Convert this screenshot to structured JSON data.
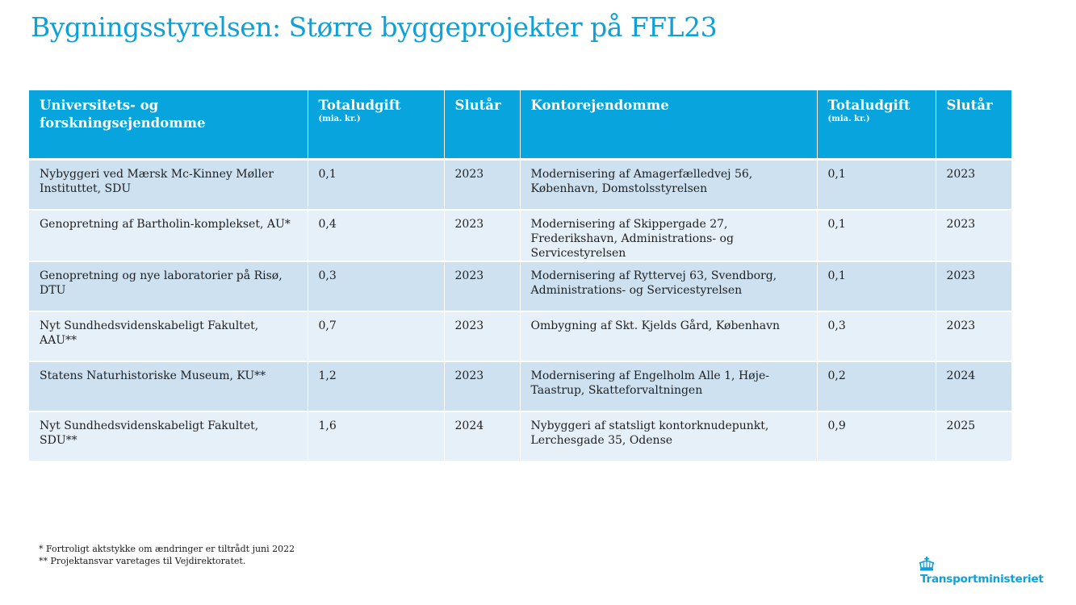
{
  "page": {
    "title": "Bygningsstyrelsen: Større byggeprojekter på FFL23"
  },
  "table": {
    "headers": [
      {
        "label": "Universitets- og forskningsejendomme",
        "unit": ""
      },
      {
        "label": "Totaludgift",
        "unit": "(mia. kr.)"
      },
      {
        "label": "Slutår",
        "unit": ""
      },
      {
        "label": "Kontorejendomme",
        "unit": ""
      },
      {
        "label": "Totaludgift",
        "unit": "(mia. kr.)"
      },
      {
        "label": "Slutår",
        "unit": ""
      }
    ],
    "rows": [
      [
        "Nybyggeri ved Mærsk Mc-Kinney Møller Instituttet, SDU",
        "0,1",
        "2023",
        "Modernisering af Amagerfælledvej 56, København, Domstolsstyrelsen",
        "0,1",
        "2023"
      ],
      [
        "Genopretning af Bartholin-komplekset, AU*",
        "0,4",
        "2023",
        "Modernisering af Skippergade 27, Frederikshavn, Administrations- og Servicestyrelsen",
        "0,1",
        "2023"
      ],
      [
        "Genopretning og nye laboratorier på Risø, DTU",
        "0,3",
        "2023",
        "Modernisering af Ryttervej 63, Svendborg, Administrations- og Servicestyrelsen",
        "0,1",
        "2023"
      ],
      [
        "Nyt Sundhedsvidenskabeligt Fakultet, AAU**",
        "0,7",
        "2023",
        "Ombygning af Skt. Kjelds Gård, København",
        "0,3",
        "2023"
      ],
      [
        "Statens Naturhistoriske Museum, KU**",
        "1,2",
        "2023",
        "Modernisering af Engelholm Alle 1, Høje-Taastrup, Skatteforvaltningen",
        "0,2",
        "2024"
      ],
      [
        "Nyt Sundhedsvidenskabeligt Fakultet, SDU**",
        "1,6",
        "2024",
        "Nybyggeri af statsligt kontorknudepunkt, Lerchesgade 35, Odense",
        "0,9",
        "2025"
      ]
    ]
  },
  "footnotes": {
    "note1": "* Fortroligt aktstykke om ændringer er tiltrådt juni 2022",
    "note2": "** Projektansvar varetages til Vejdirektoratet."
  },
  "logo": {
    "text": "Transportministeriet",
    "icon": "crown-icon"
  },
  "colors": {
    "accent": "#0ea0d8",
    "header_bg": "#08a4de",
    "row_dark": "#cde1f1",
    "row_light": "#e6f0f9"
  }
}
